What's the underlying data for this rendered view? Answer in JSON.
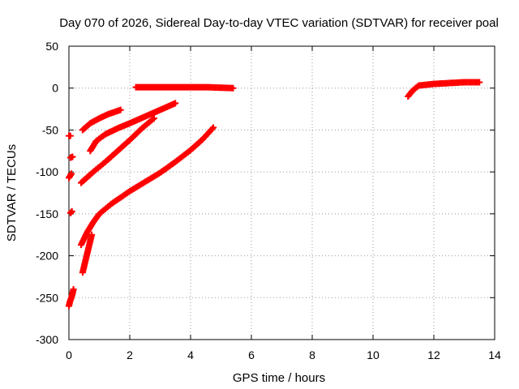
{
  "chart_data": {
    "type": "scatter",
    "title": "Day 070 of 2026, Sidereal Day-to-day VTEC variation (SDTVAR) for receiver poal",
    "xlabel": "GPS time / hours",
    "ylabel": "SDTVAR / TECUs",
    "xlim": [
      0,
      14
    ],
    "ylim": [
      -300,
      50
    ],
    "xticks": [
      0,
      2,
      4,
      6,
      8,
      10,
      12,
      14
    ],
    "yticks": [
      -300,
      -250,
      -200,
      -150,
      -100,
      -50,
      0,
      50
    ],
    "grid": true,
    "marker": "+",
    "color": "#ff0000",
    "series": [
      {
        "x": [
          2.2,
          3.0,
          3.8,
          4.6,
          5.4
        ],
        "y": [
          1,
          1,
          1,
          1,
          0
        ]
      },
      {
        "x": [
          11.15,
          11.3,
          11.5,
          12.0,
          12.5,
          13.0,
          13.5
        ],
        "y": [
          -10,
          -3,
          3,
          5,
          6,
          7,
          7
        ]
      },
      {
        "x": [
          0.45,
          0.7,
          1.0,
          1.3,
          1.7
        ],
        "y": [
          -50,
          -42,
          -36,
          -31,
          -26
        ]
      },
      {
        "x": [
          0.7,
          0.9,
          1.2,
          1.6,
          2.0,
          2.5,
          3.0,
          3.5
        ],
        "y": [
          -75,
          -63,
          -55,
          -48,
          -42,
          -34,
          -26,
          -18
        ]
      },
      {
        "x": [
          0.4,
          0.8,
          1.2,
          1.6,
          2.0,
          2.4,
          2.8
        ],
        "y": [
          -113,
          -100,
          -88,
          -75,
          -62,
          -48,
          -36
        ]
      },
      {
        "x": [
          0.4,
          0.6,
          0.8,
          1.0,
          1.4,
          2.0,
          2.5,
          3.0,
          3.5,
          4.0,
          4.4,
          4.75
        ],
        "y": [
          -187,
          -172,
          -160,
          -150,
          -138,
          -123,
          -112,
          -101,
          -88,
          -74,
          -61,
          -47
        ]
      },
      {
        "x": [
          0.45,
          0.55,
          0.65,
          0.75
        ],
        "y": [
          -220,
          -205,
          -190,
          -175
        ]
      },
      {
        "x": [
          0.0,
          0.03,
          0.08,
          0.12,
          0.15
        ],
        "y": [
          -260,
          -255,
          -250,
          -245,
          -240
        ]
      },
      {
        "x": [
          0.0,
          0.05
        ],
        "y": [
          -57,
          -57
        ]
      },
      {
        "x": [
          0.05,
          0.12
        ],
        "y": [
          -83,
          -82
        ]
      },
      {
        "x": [
          0.0,
          0.05,
          0.08
        ],
        "y": [
          -107,
          -104,
          -102
        ]
      },
      {
        "x": [
          0.05,
          0.1
        ],
        "y": [
          -149,
          -147
        ]
      }
    ]
  }
}
